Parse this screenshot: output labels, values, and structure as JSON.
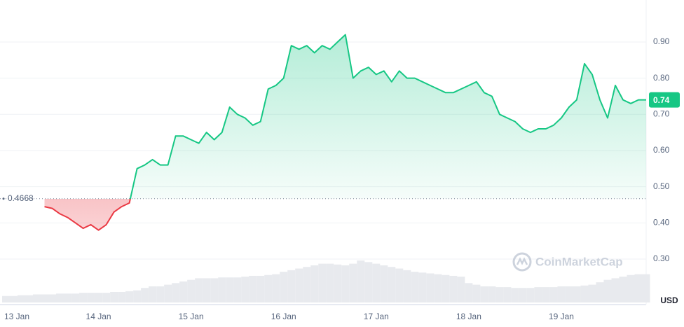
{
  "chart_data": {
    "type": "line",
    "categories": [
      "13 Jan",
      null,
      null,
      null,
      null,
      null,
      null,
      null,
      null,
      null,
      null,
      null,
      "14 Jan",
      null,
      null,
      null,
      null,
      null,
      null,
      null,
      null,
      null,
      null,
      null,
      "15 Jan",
      null,
      null,
      null,
      null,
      null,
      null,
      null,
      null,
      null,
      null,
      null,
      "16 Jan",
      null,
      null,
      null,
      null,
      null,
      null,
      null,
      null,
      null,
      null,
      null,
      "17 Jan",
      null,
      null,
      null,
      null,
      null,
      null,
      null,
      null,
      null,
      null,
      null,
      "18 Jan",
      null,
      null,
      null,
      null,
      null,
      null,
      null,
      null,
      null,
      null,
      null,
      "19 Jan",
      null,
      null,
      null,
      null,
      null,
      null,
      null,
      null,
      null,
      null,
      null
    ],
    "series": [
      {
        "name": "price",
        "color": "#16c784",
        "below_color": "#ea3943",
        "values": [
          null,
          null,
          null,
          null,
          null,
          0.445,
          0.44,
          0.425,
          0.415,
          0.4,
          0.385,
          0.395,
          0.38,
          0.395,
          0.43,
          0.445,
          0.455,
          0.55,
          0.56,
          0.575,
          0.56,
          0.56,
          0.64,
          0.64,
          0.63,
          0.62,
          0.65,
          0.63,
          0.65,
          0.72,
          0.7,
          0.69,
          0.67,
          0.68,
          0.77,
          0.78,
          0.8,
          0.89,
          0.88,
          0.89,
          0.87,
          0.89,
          0.88,
          0.9,
          0.92,
          0.8,
          0.82,
          0.83,
          0.81,
          0.82,
          0.79,
          0.82,
          0.8,
          0.8,
          0.79,
          0.78,
          0.77,
          0.76,
          0.76,
          0.77,
          0.78,
          0.79,
          0.76,
          0.75,
          0.7,
          0.69,
          0.68,
          0.66,
          0.65,
          0.66,
          0.66,
          0.67,
          0.69,
          0.72,
          0.74,
          0.84,
          0.81,
          0.74,
          0.69,
          0.78,
          0.74,
          0.73,
          0.74,
          0.74
        ]
      },
      {
        "name": "volume",
        "color": "#e8eaee",
        "values": [
          8,
          8,
          9,
          9,
          10,
          10,
          10,
          11,
          11,
          11,
          12,
          12,
          12,
          12,
          13,
          13,
          14,
          15,
          18,
          20,
          20,
          22,
          24,
          26,
          28,
          30,
          30,
          30,
          31,
          31,
          31,
          32,
          33,
          33,
          34,
          35,
          38,
          40,
          42,
          44,
          46,
          48,
          48,
          47,
          46,
          48,
          52,
          50,
          48,
          46,
          44,
          42,
          40,
          38,
          37,
          36,
          35,
          34,
          33,
          32,
          24,
          22,
          20,
          20,
          19,
          19,
          18,
          18,
          18,
          19,
          19,
          19,
          20,
          20,
          20,
          21,
          22,
          25,
          28,
          30,
          32,
          34,
          35,
          35
        ]
      }
    ],
    "baseline": 0.4668,
    "ylim": [
      0.18,
      1.016
    ],
    "yticks": [
      {
        "value": 0.3,
        "label": "0.30"
      },
      {
        "value": 0.4,
        "label": "0.40"
      },
      {
        "value": 0.5,
        "label": "0.50"
      },
      {
        "value": 0.6,
        "label": "0.60"
      },
      {
        "value": 0.7,
        "label": "0.70"
      },
      {
        "value": 0.8,
        "label": "0.80"
      },
      {
        "value": 0.9,
        "label": "0.90"
      }
    ],
    "grid": true,
    "unit": "USD",
    "watermark": "CoinMarketCap"
  }
}
